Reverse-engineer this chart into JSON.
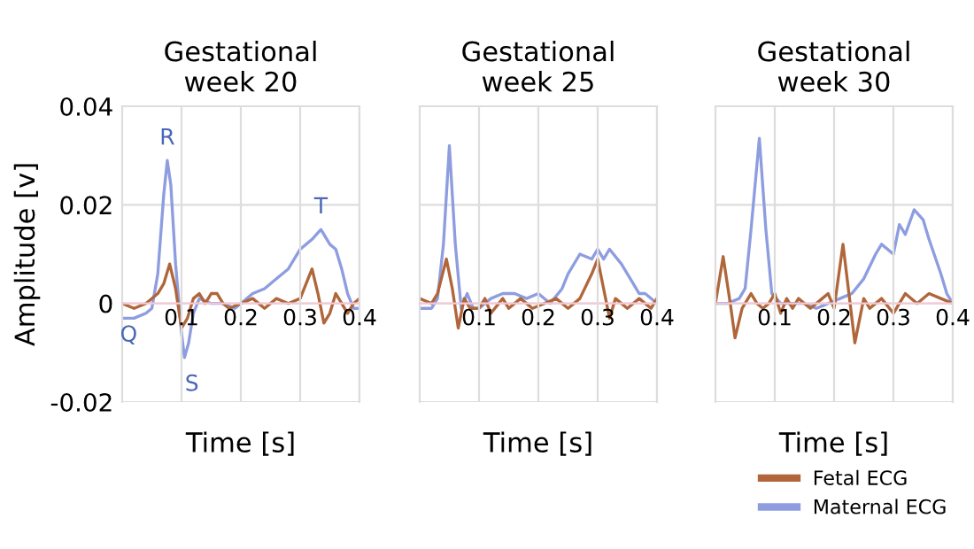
{
  "chart_data": [
    {
      "type": "line",
      "title": "Gestational\nweek 20",
      "xlabel": "Time [s]",
      "ylabel": "Amplitude [v]",
      "xlim": [
        0,
        0.4
      ],
      "ylim": [
        -0.02,
        0.04
      ],
      "xticks": [
        0.1,
        0.2,
        0.3,
        0.4
      ],
      "yticks": [
        {
          "value": -0.02,
          "label": "-0.02"
        },
        0,
        0.02,
        0.04
      ],
      "grid": true,
      "annotations": [
        {
          "text": "R",
          "x": 0.076,
          "y": 0.029
        },
        {
          "text": "Q",
          "x": 0.04,
          "y": -0.002
        },
        {
          "text": "S",
          "x": 0.105,
          "y": -0.011
        },
        {
          "text": "T",
          "x": 0.335,
          "y": 0.015
        }
      ],
      "series": [
        {
          "color": "#8e9de0",
          "x": [
            0,
            0.02,
            0.04,
            0.05,
            0.06,
            0.07,
            0.076,
            0.082,
            0.09,
            0.1,
            0.105,
            0.112,
            0.12,
            0.13,
            0.15,
            0.17,
            0.19,
            0.2,
            0.22,
            0.24,
            0.26,
            0.28,
            0.3,
            0.31,
            0.32,
            0.335,
            0.35,
            0.36,
            0.37,
            0.38,
            0.39,
            0.4
          ],
          "values": [
            -0.003,
            -0.003,
            -0.002,
            -0.001,
            0.006,
            0.022,
            0.029,
            0.024,
            0.008,
            -0.006,
            -0.011,
            -0.008,
            -0.002,
            0.001,
            0.0,
            0.0,
            -0.001,
            0.0,
            0.002,
            0.003,
            0.005,
            0.007,
            0.011,
            0.012,
            0.013,
            0.015,
            0.012,
            0.011,
            0.007,
            0.002,
            -0.001,
            -0.001
          ]
        },
        {
          "color": "#b0663a",
          "x": [
            0,
            0.02,
            0.04,
            0.06,
            0.07,
            0.08,
            0.09,
            0.1,
            0.11,
            0.12,
            0.13,
            0.14,
            0.15,
            0.16,
            0.17,
            0.18,
            0.2,
            0.22,
            0.24,
            0.26,
            0.28,
            0.3,
            0.31,
            0.32,
            0.33,
            0.34,
            0.35,
            0.36,
            0.37,
            0.38,
            0.39,
            0.4
          ],
          "values": [
            0.0,
            -0.001,
            0.0,
            0.002,
            0.004,
            0.008,
            0.003,
            -0.005,
            -0.003,
            0.001,
            0.002,
            0.0,
            0.002,
            0.002,
            0.0,
            -0.001,
            0.0,
            0.001,
            -0.001,
            0.001,
            0.0,
            0.001,
            0.004,
            0.007,
            0.002,
            -0.004,
            -0.002,
            0.002,
            0.0,
            -0.002,
            0.0,
            0.001
          ]
        }
      ]
    },
    {
      "type": "line",
      "title": "Gestational\nweek 25",
      "xlabel": "Time [s]",
      "xlim": [
        0,
        0.4
      ],
      "ylim": [
        -0.02,
        0.04
      ],
      "xticks": [
        0.1,
        0.2,
        0.3,
        0.4
      ],
      "yticks": [
        -0.02,
        0,
        0.02,
        0.04
      ],
      "tick_labels": "x",
      "grid": true,
      "series": [
        {
          "color": "#8e9de0",
          "x": [
            0,
            0.02,
            0.03,
            0.04,
            0.05,
            0.06,
            0.07,
            0.08,
            0.09,
            0.1,
            0.12,
            0.14,
            0.16,
            0.18,
            0.2,
            0.22,
            0.24,
            0.25,
            0.27,
            0.29,
            0.3,
            0.31,
            0.32,
            0.34,
            0.36,
            0.37,
            0.38,
            0.4
          ],
          "values": [
            -0.001,
            -0.001,
            0.001,
            0.012,
            0.032,
            0.012,
            -0.001,
            0.002,
            -0.001,
            -0.001,
            0.001,
            0.002,
            0.002,
            0.001,
            0.002,
            0.0,
            0.003,
            0.006,
            0.01,
            0.009,
            0.011,
            0.009,
            0.011,
            0.008,
            0.004,
            0.002,
            0.002,
            0.0
          ]
        },
        {
          "color": "#b0663a",
          "x": [
            0,
            0.02,
            0.03,
            0.045,
            0.055,
            0.065,
            0.075,
            0.085,
            0.1,
            0.11,
            0.12,
            0.14,
            0.15,
            0.17,
            0.19,
            0.21,
            0.23,
            0.25,
            0.27,
            0.29,
            0.3,
            0.31,
            0.32,
            0.33,
            0.35,
            0.37,
            0.39,
            0.4
          ],
          "values": [
            0.001,
            0.0,
            0.002,
            0.009,
            0.003,
            -0.005,
            0.001,
            -0.001,
            -0.001,
            0.001,
            -0.002,
            0.001,
            -0.001,
            0.001,
            -0.001,
            0.0,
            0.001,
            -0.001,
            0.001,
            0.006,
            0.009,
            0.003,
            -0.003,
            0.001,
            -0.001,
            0.001,
            -0.001,
            0.001
          ]
        }
      ]
    },
    {
      "type": "line",
      "title": "Gestational\nweek 30",
      "xlabel": "Time [s]",
      "xlim": [
        0,
        0.4
      ],
      "ylim": [
        -0.02,
        0.04
      ],
      "xticks": [
        0.1,
        0.2,
        0.3,
        0.4
      ],
      "yticks": [
        -0.02,
        0,
        0.02,
        0.04
      ],
      "tick_labels": "x",
      "grid": true,
      "legend": "bottom right",
      "series": [
        {
          "name": "Maternal ECG",
          "color": "#8e9de0",
          "x": [
            0,
            0.02,
            0.04,
            0.05,
            0.06,
            0.074,
            0.085,
            0.095,
            0.11,
            0.13,
            0.15,
            0.17,
            0.19,
            0.21,
            0.23,
            0.25,
            0.27,
            0.28,
            0.3,
            0.31,
            0.32,
            0.335,
            0.35,
            0.36,
            0.38,
            0.39,
            0.4
          ],
          "values": [
            0.0,
            0.0,
            0.001,
            0.003,
            0.015,
            0.0335,
            0.015,
            0.002,
            0.0,
            0.0,
            0.0,
            -0.001,
            0.0,
            0.001,
            0.002,
            0.005,
            0.01,
            0.012,
            0.01,
            0.016,
            0.014,
            0.019,
            0.017,
            0.013,
            0.006,
            0.002,
            0.0
          ]
        },
        {
          "name": "Fetal ECG",
          "color": "#b0663a",
          "x": [
            0,
            0.013,
            0.025,
            0.033,
            0.045,
            0.06,
            0.07,
            0.08,
            0.09,
            0.1,
            0.11,
            0.12,
            0.13,
            0.14,
            0.15,
            0.16,
            0.18,
            0.19,
            0.2,
            0.215,
            0.225,
            0.235,
            0.25,
            0.26,
            0.28,
            0.3,
            0.32,
            0.34,
            0.36,
            0.38,
            0.4
          ],
          "values": [
            0.0,
            0.0095,
            0.0,
            -0.007,
            -0.001,
            0.002,
            0.0,
            -0.001,
            0.0,
            0.002,
            -0.002,
            0.001,
            -0.001,
            0.001,
            0.0,
            -0.001,
            0.001,
            0.002,
            -0.001,
            0.012,
            0.002,
            -0.008,
            0.001,
            -0.001,
            0.001,
            -0.002,
            0.002,
            0.0,
            0.002,
            0.001,
            0.0
          ]
        }
      ]
    }
  ]
}
